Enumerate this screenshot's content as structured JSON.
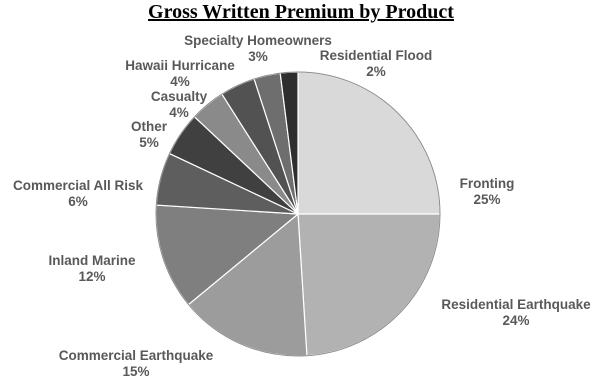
{
  "chart_data": {
    "type": "pie",
    "title": "Gross Written Premium by Product",
    "slices": [
      {
        "label": "Fronting",
        "pct_label": "25%",
        "value": 25,
        "color": "#d9d9d9"
      },
      {
        "label": "Residential Earthquake",
        "pct_label": "24%",
        "value": 24,
        "color": "#b2b2b2"
      },
      {
        "label": "Commercial Earthquake",
        "pct_label": "15%",
        "value": 15,
        "color": "#9c9c9c"
      },
      {
        "label": "Inland Marine",
        "pct_label": "12%",
        "value": 12,
        "color": "#7f7f7f"
      },
      {
        "label": "Commercial All Risk",
        "pct_label": "6%",
        "value": 6,
        "color": "#5e5e5e"
      },
      {
        "label": "Other",
        "pct_label": "5%",
        "value": 5,
        "color": "#404040"
      },
      {
        "label": "Casualty",
        "pct_label": "4%",
        "value": 4,
        "color": "#8a8a8a"
      },
      {
        "label": "Hawaii Hurricane",
        "pct_label": "4%",
        "value": 4,
        "color": "#525252"
      },
      {
        "label": "Specialty Homeowners",
        "pct_label": "3%",
        "value": 3,
        "color": "#6e6e6e"
      },
      {
        "label": "Residential Flood",
        "pct_label": "2%",
        "value": 2,
        "color": "#2e2e2e"
      }
    ]
  }
}
